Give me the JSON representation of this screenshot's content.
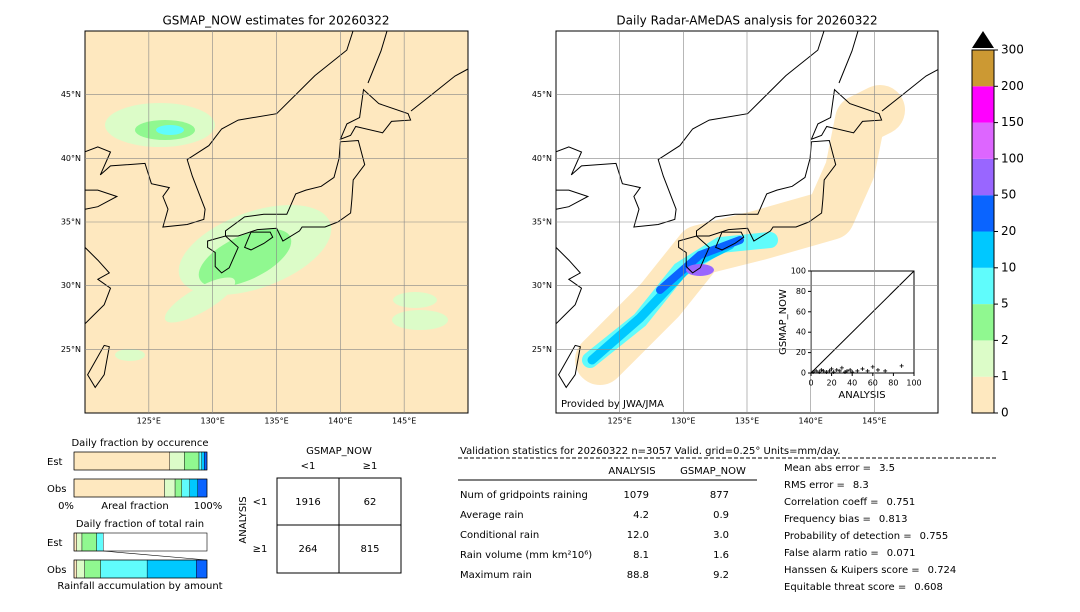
{
  "maps": [
    {
      "title": "GSMAP_NOW estimates for 20260322",
      "xlim": [
        120,
        150
      ],
      "ylim": [
        20,
        50
      ],
      "xticks": [
        {
          "value": 125,
          "label": "125°E"
        },
        {
          "value": 130,
          "label": "130°E"
        },
        {
          "value": 135,
          "label": "135°E"
        },
        {
          "value": 140,
          "label": "140°E"
        },
        {
          "value": 145,
          "label": "145°E"
        }
      ],
      "yticks": [
        {
          "value": 25,
          "label": "25°N"
        },
        {
          "value": 30,
          "label": "30°N"
        },
        {
          "value": 35,
          "label": "35°N"
        },
        {
          "value": 40,
          "label": "40°N"
        },
        {
          "value": 45,
          "label": "45°N"
        }
      ]
    },
    {
      "title": "Daily Radar-AMeDAS analysis for 20260322",
      "credit": "Provided by JWA/JMA",
      "xlim": [
        120,
        150
      ],
      "ylim": [
        20,
        50
      ],
      "xticks": [
        {
          "value": 125,
          "label": "125°E"
        },
        {
          "value": 130,
          "label": "130°E"
        },
        {
          "value": 135,
          "label": "135°E"
        },
        {
          "value": 140,
          "label": "140°E"
        },
        {
          "value": 145,
          "label": "145°E"
        }
      ],
      "yticks": [
        {
          "value": 25,
          "label": "25°N"
        },
        {
          "value": 30,
          "label": "30°N"
        },
        {
          "value": 35,
          "label": "35°N"
        },
        {
          "value": 40,
          "label": "40°N"
        },
        {
          "value": 45,
          "label": "45°N"
        }
      ]
    }
  ],
  "colorbar": {
    "ticks": [
      0,
      1,
      2,
      5,
      10,
      20,
      50,
      100,
      150,
      200,
      300
    ],
    "colors": [
      "#fee8bf",
      "#dcfcc8",
      "#90f890",
      "#60fcfc",
      "#00c8ff",
      "#0a64ff",
      "#9966ff",
      "#dd66ff",
      "#ff00ff",
      "#cc9933"
    ]
  },
  "scatter": {
    "type": "scatter",
    "xlabel": "ANALYSIS",
    "ylabel": "GSMAP_NOW",
    "xlim": [
      0,
      100
    ],
    "ylim": [
      0,
      100
    ],
    "xticks": [
      0,
      20,
      40,
      60,
      80,
      100
    ],
    "yticks": [
      0,
      20,
      40,
      60,
      80,
      100
    ],
    "x": [
      2,
      5,
      8,
      10,
      12,
      15,
      18,
      20,
      22,
      25,
      28,
      30,
      33,
      35,
      38,
      40,
      45,
      50,
      55,
      60,
      65,
      72,
      88
    ],
    "y": [
      1,
      2,
      1,
      3,
      2,
      1,
      2,
      4,
      1,
      3,
      2,
      5,
      1,
      2,
      3,
      1,
      2,
      4,
      2,
      6,
      3,
      2,
      7
    ]
  },
  "occurrence": {
    "title": "Daily fraction by occurence",
    "rows": [
      "Est",
      "Obs"
    ],
    "xlabel": "Areal fraction",
    "left": "0%",
    "right": "100%",
    "est": [
      72,
      11,
      11,
      2,
      2,
      2
    ],
    "obs": [
      68,
      8,
      5,
      6,
      6,
      7
    ]
  },
  "total_rain": {
    "title": "Daily fraction of total rain",
    "rows": [
      "Est",
      "Obs"
    ],
    "xlabel": "Rainfall accumulation by amount",
    "est": [
      2,
      4,
      11,
      5
    ],
    "obs": [
      2,
      6,
      12,
      35,
      37,
      8
    ]
  },
  "contingency": {
    "col_title": "GSMAP_NOW",
    "row_title": "ANALYSIS",
    "cols": [
      "<1",
      "≥1"
    ],
    "rows": [
      "<1",
      "≥1"
    ],
    "cells": [
      [
        1916,
        62
      ],
      [
        264,
        815
      ]
    ]
  },
  "validation": {
    "title": "Validation statistics for 20260322  n=3057 Valid. grid=0.25° Units=mm/day.",
    "columns": [
      "ANALYSIS",
      "GSMAP_NOW"
    ],
    "rows": [
      [
        "Num of gridpoints raining",
        "1079",
        "877"
      ],
      [
        "Average rain",
        "4.2",
        "0.9"
      ],
      [
        "Conditional rain",
        "12.0",
        "3.0"
      ],
      [
        "Rain volume (mm km²10⁶)",
        "8.1",
        "1.6"
      ],
      [
        "Maximum rain",
        "88.8",
        "9.2"
      ]
    ],
    "scores": [
      [
        "Mean abs error =",
        3.5
      ],
      [
        "RMS error =",
        8.3
      ],
      [
        "Correlation coeff =",
        0.751
      ],
      [
        "Frequency bias =",
        0.813
      ],
      [
        "Probability of detection =",
        0.755
      ],
      [
        "False alarm ratio =",
        0.071
      ],
      [
        "Hanssen & Kuipers score =",
        0.724
      ],
      [
        "Equitable threat score =",
        0.608
      ]
    ]
  }
}
